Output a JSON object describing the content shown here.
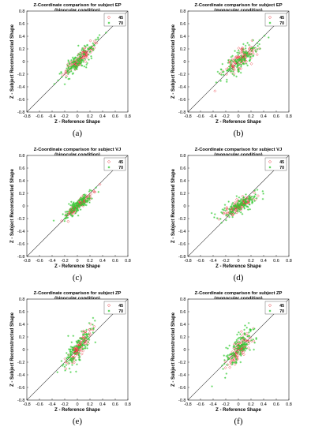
{
  "figure": {
    "panels": [
      {
        "title_line1": "Z-Coordinate comparison for subject EP",
        "title_line2": "(binocular condition)",
        "caption": "(a)"
      },
      {
        "title_line1": "Z-Coordinate comparison for subject EP",
        "title_line2": "(monocular condition)",
        "caption": "(b)"
      },
      {
        "title_line1": "Z-Coordinate comparison for subject VJ",
        "title_line2": "(binocular condition)",
        "caption": "(c)"
      },
      {
        "title_line1": "Z-Coordinate comparison for subject VJ",
        "title_line2": "(monocular condition)",
        "caption": "(d)"
      },
      {
        "title_line1": "Z-Coordinate comparison for subject ZP",
        "title_line2": "(binocular condition)",
        "caption": "(e)"
      },
      {
        "title_line1": "Z-Coordinate comparison for subject ZP",
        "title_line2": "(monocular condition)",
        "caption": "(f)"
      }
    ]
  },
  "chart_data": [
    {
      "type": "scatter",
      "title": "Z-Coordinate comparison for subject EP (binocular condition)",
      "xlabel": "Z - Reference Shape",
      "ylabel": "Z - Subject Reconstructed Shape",
      "xlim": [
        -0.8,
        0.8
      ],
      "ylim": [
        -0.8,
        0.8
      ],
      "xticks": [
        "-0.8",
        "-0.6",
        "-0.4",
        "-0.2",
        "0",
        "0.2",
        "0.4",
        "0.6",
        "0.8"
      ],
      "yticks": [
        "-0.8",
        "-0.6",
        "-0.4",
        "-0.2",
        "0",
        "0.2",
        "0.4",
        "0.6",
        "0.8"
      ],
      "grid": false,
      "legend_position": "top-right",
      "reference_line": "y = x",
      "series": [
        {
          "name": "45",
          "color": "#e8333a",
          "marker": "diamond",
          "cluster": {
            "slope": 0.95,
            "x_spread": 0.11,
            "y_noise": 0.05,
            "n": 120
          }
        },
        {
          "name": "70",
          "color": "#33cc33",
          "marker": "star",
          "cluster": {
            "slope": 0.9,
            "x_spread": 0.14,
            "y_noise": 0.08,
            "n": 140
          }
        }
      ]
    },
    {
      "type": "scatter",
      "title": "Z-Coordinate comparison for subject EP (monocular condition)",
      "xlabel": "Z - Reference Shape",
      "ylabel": "Z - Subject Reconstructed Shape",
      "xlim": [
        -0.8,
        0.8
      ],
      "ylim": [
        -0.8,
        0.8
      ],
      "xticks": [
        "-0.8",
        "-0.6",
        "-0.4",
        "-0.2",
        "0",
        "0.2",
        "0.4",
        "0.6",
        "0.8"
      ],
      "yticks": [
        "-0.8",
        "-0.6",
        "-0.4",
        "-0.2",
        "0",
        "0.2",
        "0.4",
        "0.6",
        "0.8"
      ],
      "grid": false,
      "legend_position": "top-right",
      "reference_line": "y = x",
      "series": [
        {
          "name": "45",
          "color": "#e8333a",
          "marker": "diamond",
          "cluster": {
            "slope": 0.75,
            "x_spread": 0.12,
            "y_noise": 0.07,
            "n": 120
          }
        },
        {
          "name": "70",
          "color": "#33cc33",
          "marker": "star",
          "cluster": {
            "slope": 0.7,
            "x_spread": 0.15,
            "y_noise": 0.08,
            "n": 140
          }
        }
      ]
    },
    {
      "type": "scatter",
      "title": "Z-Coordinate comparison for subject VJ (binocular condition)",
      "xlabel": "Z - Reference Shape",
      "ylabel": "Z - Subject Reconstructed Shape",
      "xlim": [
        -0.8,
        0.8
      ],
      "ylim": [
        -0.8,
        0.8
      ],
      "xticks": [
        "-0.8",
        "-0.6",
        "-0.4",
        "-0.2",
        "0",
        "0.2",
        "0.4",
        "0.6",
        "0.8"
      ],
      "yticks": [
        "-0.8",
        "-0.6",
        "-0.4",
        "-0.2",
        "0",
        "0.2",
        "0.4",
        "0.6",
        "0.8"
      ],
      "grid": false,
      "legend_position": "top-right",
      "reference_line": "y = x",
      "series": [
        {
          "name": "45",
          "color": "#e8333a",
          "marker": "diamond",
          "cluster": {
            "slope": 0.85,
            "x_spread": 0.11,
            "y_noise": 0.035,
            "n": 120
          }
        },
        {
          "name": "70",
          "color": "#33cc33",
          "marker": "star",
          "cluster": {
            "slope": 0.8,
            "x_spread": 0.13,
            "y_noise": 0.05,
            "n": 140
          }
        }
      ]
    },
    {
      "type": "scatter",
      "title": "Z-Coordinate comparison for subject VJ (monocular condition)",
      "xlabel": "Z - Reference Shape",
      "ylabel": "Z - Subject Reconstructed Shape",
      "xlim": [
        -0.8,
        0.8
      ],
      "ylim": [
        -0.8,
        0.8
      ],
      "xticks": [
        "-0.8",
        "-0.6",
        "-0.4",
        "-0.2",
        "0",
        "0.2",
        "0.4",
        "0.6",
        "0.8"
      ],
      "yticks": [
        "-0.8",
        "-0.6",
        "-0.4",
        "-0.2",
        "0",
        "0.2",
        "0.4",
        "0.6",
        "0.8"
      ],
      "grid": false,
      "legend_position": "top-right",
      "reference_line": "y = x",
      "series": [
        {
          "name": "45",
          "color": "#e8333a",
          "marker": "diamond",
          "cluster": {
            "slope": 0.55,
            "x_spread": 0.12,
            "y_noise": 0.04,
            "n": 120
          }
        },
        {
          "name": "70",
          "color": "#33cc33",
          "marker": "star",
          "cluster": {
            "slope": 0.5,
            "x_spread": 0.15,
            "y_noise": 0.06,
            "n": 140
          }
        }
      ]
    },
    {
      "type": "scatter",
      "title": "Z-Coordinate comparison for subject ZP (binocular condition)",
      "xlabel": "Z - Reference Shape",
      "ylabel": "Z - Subject Reconstructed Shape",
      "xlim": [
        -0.8,
        0.8
      ],
      "ylim": [
        -0.8,
        0.8
      ],
      "xticks": [
        "-0.8",
        "-0.6",
        "-0.4",
        "-0.2",
        "0",
        "0.2",
        "0.4",
        "0.6",
        "0.8"
      ],
      "yticks": [
        "-0.8",
        "-0.6",
        "-0.4",
        "-0.2",
        "0",
        "0.2",
        "0.4",
        "0.6",
        "0.8"
      ],
      "grid": false,
      "legend_position": "top-right",
      "reference_line": "y = x",
      "series": [
        {
          "name": "45",
          "color": "#e8333a",
          "marker": "diamond",
          "cluster": {
            "slope": 1.2,
            "x_spread": 0.09,
            "y_noise": 0.07,
            "n": 120
          }
        },
        {
          "name": "70",
          "color": "#33cc33",
          "marker": "star",
          "cluster": {
            "slope": 1.1,
            "x_spread": 0.12,
            "y_noise": 0.1,
            "n": 140
          }
        }
      ]
    },
    {
      "type": "scatter",
      "title": "Z-Coordinate comparison for subject ZP (monocular condition)",
      "xlabel": "Z - Reference Shape",
      "ylabel": "Z - Subject Reconstructed Shape",
      "xlim": [
        -0.8,
        0.8
      ],
      "ylim": [
        -0.8,
        0.8
      ],
      "xticks": [
        "-0.8",
        "-0.6",
        "-0.4",
        "-0.2",
        "0",
        "0.2",
        "0.4",
        "0.6",
        "0.8"
      ],
      "yticks": [
        "-0.8",
        "-0.6",
        "-0.4",
        "-0.2",
        "0",
        "0.2",
        "0.4",
        "0.6",
        "0.8"
      ],
      "grid": false,
      "legend_position": "top-right",
      "reference_line": "y = x",
      "series": [
        {
          "name": "45",
          "color": "#e8333a",
          "marker": "diamond",
          "cluster": {
            "slope": 1.1,
            "x_spread": 0.1,
            "y_noise": 0.08,
            "n": 120
          }
        },
        {
          "name": "70",
          "color": "#33cc33",
          "marker": "star",
          "cluster": {
            "slope": 1.0,
            "x_spread": 0.13,
            "y_noise": 0.1,
            "n": 140
          }
        }
      ]
    }
  ]
}
